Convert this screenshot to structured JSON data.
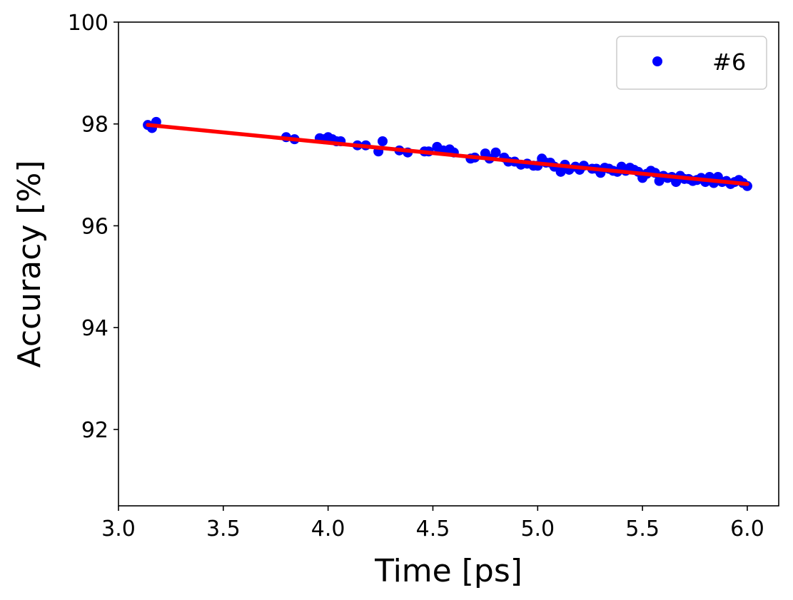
{
  "chart_data": {
    "type": "scatter",
    "title": "",
    "xlabel": "Time [ps]",
    "ylabel": "Accuracy [%]",
    "xlim": [
      3.0,
      6.15
    ],
    "ylim": [
      90.5,
      100
    ],
    "xticks": [
      3.0,
      3.5,
      4.0,
      4.5,
      5.0,
      5.5,
      6.0
    ],
    "xtick_labels": [
      "3.0",
      "3.5",
      "4.0",
      "4.5",
      "5.0",
      "5.5",
      "6.0"
    ],
    "yticks": [
      92,
      94,
      96,
      98,
      100
    ],
    "ytick_labels": [
      "92",
      "94",
      "96",
      "98",
      "100"
    ],
    "grid": false,
    "legend": {
      "placement": "top-right",
      "entries": [
        "#6"
      ]
    },
    "series": [
      {
        "name": "#6",
        "kind": "scatter",
        "color": "#0000ff",
        "x": [
          3.14,
          3.16,
          3.18,
          3.8,
          3.84,
          3.96,
          3.98,
          4.0,
          4.02,
          4.04,
          4.06,
          4.14,
          4.18,
          4.24,
          4.26,
          4.34,
          4.38,
          4.46,
          4.48,
          4.52,
          4.55,
          4.58,
          4.6,
          4.68,
          4.7,
          4.75,
          4.77,
          4.8,
          4.84,
          4.86,
          4.89,
          4.92,
          4.95,
          4.98,
          5.0,
          5.02,
          5.04,
          5.06,
          5.08,
          5.11,
          5.13,
          5.15,
          5.18,
          5.2,
          5.22,
          5.26,
          5.28,
          5.3,
          5.32,
          5.34,
          5.36,
          5.38,
          5.4,
          5.42,
          5.44,
          5.46,
          5.48,
          5.5,
          5.52,
          5.54,
          5.56,
          5.58,
          5.6,
          5.62,
          5.64,
          5.66,
          5.68,
          5.7,
          5.72,
          5.74,
          5.76,
          5.78,
          5.8,
          5.82,
          5.84,
          5.86,
          5.88,
          5.9,
          5.92,
          5.94,
          5.96,
          5.98,
          6.0
        ],
        "y": [
          97.98,
          97.92,
          98.04,
          97.74,
          97.7,
          97.72,
          97.7,
          97.74,
          97.7,
          97.66,
          97.66,
          97.58,
          97.58,
          97.46,
          97.66,
          97.48,
          97.44,
          97.46,
          97.46,
          97.55,
          97.48,
          97.5,
          97.44,
          97.32,
          97.34,
          97.42,
          97.32,
          97.44,
          97.34,
          97.26,
          97.26,
          97.2,
          97.22,
          97.18,
          97.18,
          97.32,
          97.24,
          97.24,
          97.16,
          97.06,
          97.2,
          97.1,
          97.16,
          97.1,
          97.18,
          97.12,
          97.12,
          97.04,
          97.14,
          97.12,
          97.08,
          97.06,
          97.16,
          97.08,
          97.14,
          97.1,
          97.06,
          96.94,
          97.02,
          97.08,
          97.04,
          96.88,
          96.98,
          96.94,
          96.96,
          96.86,
          96.98,
          96.92,
          96.92,
          96.88,
          96.9,
          96.94,
          96.86,
          96.96,
          96.84,
          96.96,
          96.86,
          96.88,
          96.82,
          96.86,
          96.9,
          96.84,
          96.78
        ]
      },
      {
        "kind": "line",
        "color": "#ff0000",
        "x": [
          3.14,
          6.0
        ],
        "y": [
          97.98,
          96.82
        ]
      }
    ]
  }
}
